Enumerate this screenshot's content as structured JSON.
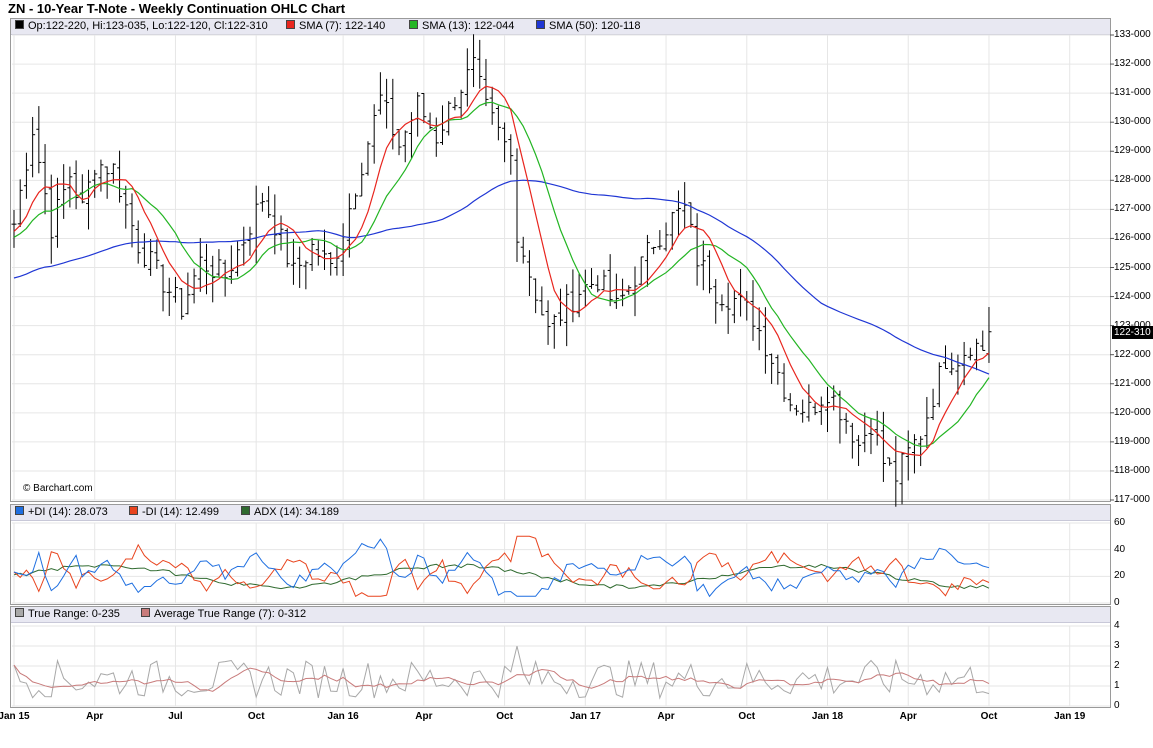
{
  "title": "ZN - 10-Year T-Note - Weekly Continuation OHLC Chart",
  "watermark": "© Barchart.com",
  "last_price_label": "122-310",
  "colors": {
    "price": "#000000",
    "sma7": "#e8251e",
    "sma13": "#23b523",
    "sma50": "#1f36d4",
    "pdi": "#1f6fe0",
    "mdi": "#e8441e",
    "adx": "#2f6a2f",
    "tr": "#a8a8a8",
    "atr": "#c87b7b"
  },
  "legends": {
    "main": {
      "ohlc": "Op:122-220, Hi:123-035, Lo:122-120, Cl:122-310",
      "sma7": "SMA (7): 122-140",
      "sma13": "SMA (13): 122-044",
      "sma50": "SMA (50): 120-118"
    },
    "dmi": {
      "pdi": "+DI (14): 28.073",
      "mdi": "-DI (14): 12.499",
      "adx": "ADX (14): 34.189"
    },
    "tr": {
      "tr": "True Range: 0-235",
      "atr": "Average True Range (7): 0-312"
    }
  },
  "chart_data": [
    {
      "type": "line",
      "subtype": "ohlc",
      "title": "ZN - 10-Year T-Note - Weekly Continuation OHLC Chart",
      "ylim": [
        117,
        133
      ],
      "y_ticks": [
        "133-000",
        "132-000",
        "131-000",
        "130-000",
        "129-000",
        "128-000",
        "127-000",
        "126-000",
        "125-000",
        "124-000",
        "123-000",
        "122-000",
        "121-000",
        "120-000",
        "119-000",
        "118-000",
        "117-000"
      ],
      "x_labels": [
        "Jan 15",
        "Apr",
        "Jul",
        "Oct",
        "Jan 16",
        "Apr",
        "Oct",
        "Jan 17",
        "Apr",
        "Oct",
        "Jan 18",
        "Apr",
        "Oct",
        "Jan 19"
      ],
      "x_label_weeks": [
        0,
        13,
        26,
        39,
        53,
        66,
        79,
        92,
        105,
        118,
        131,
        144,
        157,
        170
      ],
      "close_anchors_by_week": [
        [
          0,
          126.5
        ],
        [
          3,
          129.8
        ],
        [
          6,
          126.4
        ],
        [
          9,
          128.2
        ],
        [
          11,
          127.0
        ],
        [
          13,
          128.6
        ],
        [
          16,
          128.4
        ],
        [
          20,
          125.8
        ],
        [
          24,
          124.5
        ],
        [
          27,
          123.6
        ],
        [
          30,
          125.2
        ],
        [
          34,
          124.7
        ],
        [
          37,
          126.0
        ],
        [
          40,
          127.4
        ],
        [
          42,
          126.5
        ],
        [
          45,
          124.8
        ],
        [
          48,
          125.7
        ],
        [
          51,
          125.0
        ],
        [
          53,
          126.3
        ],
        [
          56,
          128.6
        ],
        [
          59,
          130.8
        ],
        [
          62,
          129.2
        ],
        [
          65,
          130.6
        ],
        [
          68,
          129.5
        ],
        [
          71,
          130.9
        ],
        [
          74,
          131.9
        ],
        [
          76,
          130.4
        ],
        [
          78,
          129.6
        ],
        [
          80,
          128.8
        ],
        [
          81,
          126.3
        ],
        [
          83,
          124.8
        ],
        [
          86,
          122.8
        ],
        [
          88,
          123.4
        ],
        [
          91,
          124.2
        ],
        [
          94,
          124.6
        ],
        [
          97,
          123.6
        ],
        [
          100,
          124.7
        ],
        [
          103,
          125.9
        ],
        [
          106,
          126.7
        ],
        [
          108,
          127.0
        ],
        [
          110,
          125.3
        ],
        [
          113,
          124.2
        ],
        [
          116,
          123.9
        ],
        [
          119,
          123.3
        ],
        [
          122,
          121.9
        ],
        [
          125,
          120.4
        ],
        [
          128,
          120.1
        ],
        [
          131,
          120.8
        ],
        [
          134,
          119.8
        ],
        [
          136,
          118.9
        ],
        [
          138,
          119.7
        ],
        [
          140,
          118.3
        ],
        [
          142,
          117.8
        ],
        [
          144,
          118.6
        ],
        [
          146,
          119.3
        ],
        [
          148,
          120.6
        ],
        [
          150,
          121.9
        ],
        [
          152,
          121.9
        ],
        [
          154,
          122.4
        ],
        [
          156,
          122.2
        ],
        [
          157,
          122.9
        ]
      ],
      "series": [
        {
          "name": "SMA (7)",
          "last": "122-140"
        },
        {
          "name": "SMA (13)",
          "last": "122-044"
        },
        {
          "name": "SMA (50)",
          "last": "120-118"
        }
      ],
      "last_bar": {
        "open": "122-220",
        "high": "123-035",
        "low": "122-120",
        "close": "122-310"
      }
    },
    {
      "type": "line",
      "ylim": [
        0,
        60
      ],
      "y_ticks": [
        60,
        40,
        20,
        0
      ],
      "series": [
        {
          "name": "+DI (14)",
          "last": 28.073
        },
        {
          "name": "-DI (14)",
          "last": 12.499
        },
        {
          "name": "ADX (14)",
          "last": 34.189
        }
      ]
    },
    {
      "type": "line",
      "ylim": [
        0,
        4
      ],
      "y_ticks": [
        4,
        3,
        2,
        1,
        0
      ],
      "series": [
        {
          "name": "True Range",
          "last": "0-235"
        },
        {
          "name": "Average True Range (7)",
          "last": "0-312"
        }
      ]
    }
  ]
}
